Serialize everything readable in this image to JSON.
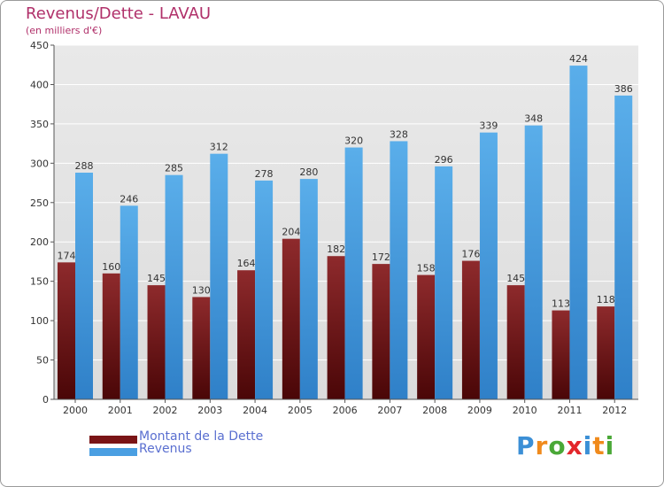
{
  "title": "Revenus/Dette - LAVAU",
  "subtitle": "(en milliers d'€)",
  "logo": {
    "text": "Proxiti",
    "letters": [
      {
        "ch": "P",
        "color": "#3b8fd6"
      },
      {
        "ch": "r",
        "color": "#f08a1c"
      },
      {
        "ch": "o",
        "color": "#4aa837"
      },
      {
        "ch": "x",
        "color": "#e3262b"
      },
      {
        "ch": "i",
        "color": "#3b8fd6"
      },
      {
        "ch": "t",
        "color": "#f08a1c"
      },
      {
        "ch": "i",
        "color": "#4aa837"
      }
    ]
  },
  "legend": {
    "items": [
      {
        "label": "Montant de la Dette",
        "color": "#7a1416"
      },
      {
        "label": "Revenus",
        "color": "#4a9fe2"
      }
    ]
  },
  "chart_data": {
    "type": "bar",
    "categories": [
      "2000",
      "2001",
      "2002",
      "2003",
      "2004",
      "2005",
      "2006",
      "2007",
      "2008",
      "2009",
      "2010",
      "2011",
      "2012"
    ],
    "series": [
      {
        "name": "Montant de la Dette",
        "color": "#7a1416",
        "values": [
          174,
          160,
          145,
          130,
          164,
          204,
          182,
          172,
          158,
          176,
          145,
          113,
          118
        ]
      },
      {
        "name": "Revenus",
        "color": "#4a9fe2",
        "values": [
          288,
          246,
          285,
          312,
          278,
          280,
          320,
          328,
          296,
          339,
          348,
          424,
          386
        ]
      }
    ],
    "ylim": [
      0,
      450
    ],
    "yticks": [
      0,
      50,
      100,
      150,
      200,
      250,
      300,
      350,
      400,
      450
    ],
    "grid": true,
    "legend_position": "bottom-left"
  }
}
